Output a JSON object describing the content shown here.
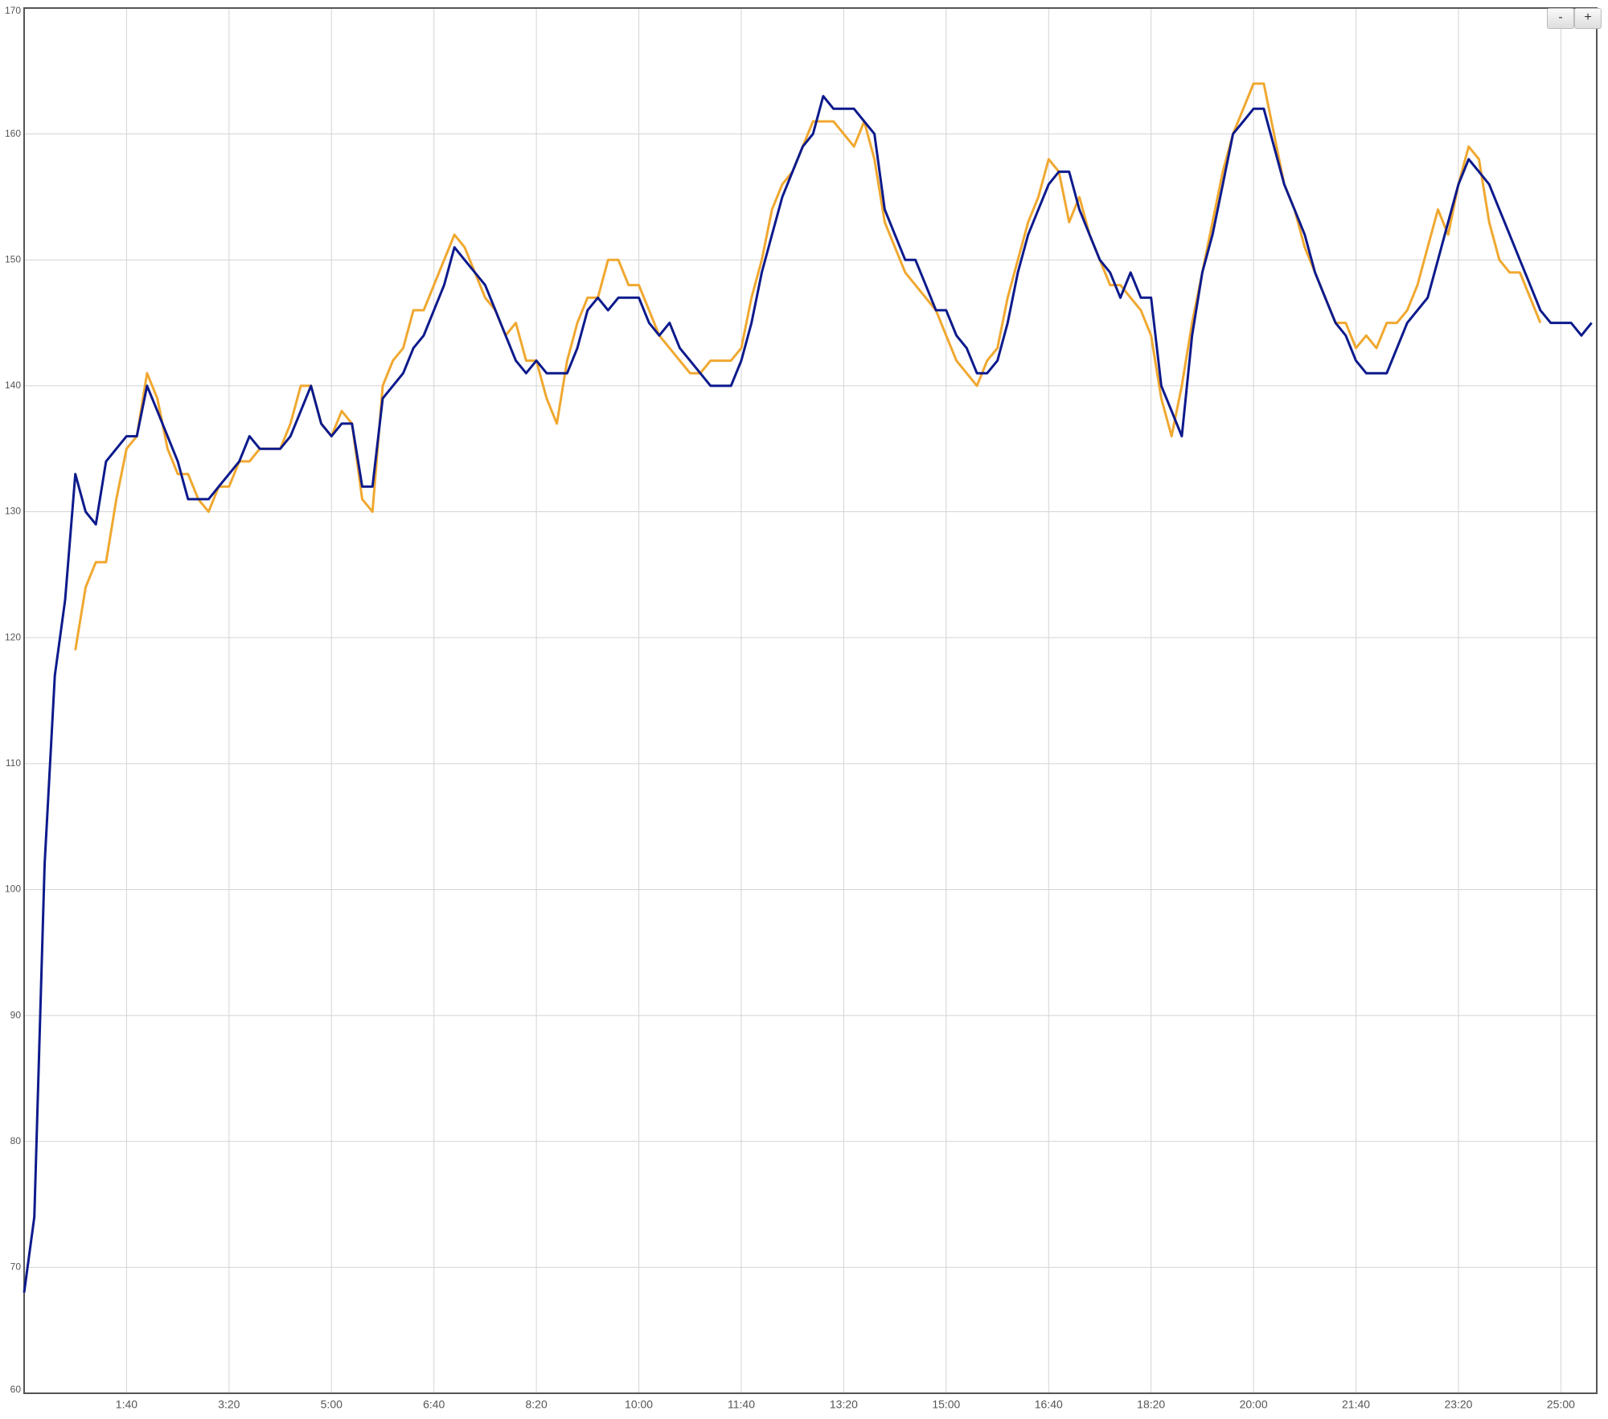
{
  "chart_data": {
    "type": "line",
    "x": [
      0,
      10,
      20,
      30,
      40,
      50,
      60,
      70,
      80,
      90,
      100,
      110,
      120,
      130,
      140,
      150,
      160,
      170,
      180,
      190,
      200,
      210,
      220,
      230,
      240,
      250,
      260,
      270,
      280,
      290,
      300,
      310,
      320,
      330,
      340,
      350,
      360,
      370,
      380,
      390,
      400,
      410,
      420,
      430,
      440,
      450,
      460,
      470,
      480,
      490,
      500,
      510,
      520,
      530,
      540,
      550,
      560,
      570,
      580,
      590,
      600,
      610,
      620,
      630,
      640,
      650,
      660,
      670,
      680,
      690,
      700,
      710,
      720,
      730,
      740,
      750,
      760,
      770,
      780,
      790,
      800,
      810,
      820,
      830,
      840,
      850,
      860,
      870,
      880,
      890,
      900,
      910,
      920,
      930,
      940,
      950,
      960,
      970,
      980,
      990,
      1000,
      1010,
      1020,
      1030,
      1040,
      1050,
      1060,
      1070,
      1080,
      1090,
      1100,
      1110,
      1120,
      1130,
      1140,
      1150,
      1160,
      1170,
      1180,
      1190,
      1200,
      1210,
      1220,
      1230,
      1240,
      1250,
      1260,
      1270,
      1280,
      1290,
      1300,
      1310,
      1320,
      1330,
      1340,
      1350,
      1360,
      1370,
      1380,
      1390,
      1400,
      1410,
      1420,
      1430,
      1440,
      1450,
      1460,
      1470,
      1480,
      1490,
      1500,
      1510,
      1520,
      1530
    ],
    "series": [
      {
        "color": "#f0a830",
        "values": [
          null,
          null,
          null,
          null,
          null,
          119,
          124,
          126,
          126,
          131,
          135,
          136,
          141,
          139,
          135,
          133,
          133,
          131,
          130,
          132,
          132,
          134,
          134,
          135,
          135,
          135,
          137,
          140,
          140,
          137,
          136,
          138,
          137,
          131,
          130,
          140,
          142,
          143,
          146,
          146,
          148,
          150,
          152,
          151,
          149,
          147,
          146,
          144,
          145,
          142,
          142,
          139,
          137,
          142,
          145,
          147,
          147,
          150,
          150,
          148,
          148,
          146,
          144,
          143,
          142,
          141,
          141,
          142,
          142,
          142,
          143,
          147,
          150,
          154,
          156,
          157,
          159,
          161,
          161,
          161,
          160,
          159,
          161,
          158,
          153,
          151,
          149,
          148,
          147,
          146,
          144,
          142,
          141,
          140,
          142,
          143,
          147,
          150,
          153,
          155,
          158,
          157,
          153,
          155,
          152,
          150,
          148,
          148,
          147,
          146,
          144,
          139,
          136,
          140,
          145,
          149,
          153,
          157,
          160,
          162,
          164,
          164,
          160,
          156,
          154,
          151,
          149,
          147,
          145,
          145,
          143,
          144,
          143,
          145,
          145,
          146,
          148,
          151,
          154,
          152,
          156,
          159,
          158,
          153,
          150,
          149,
          149,
          147,
          145,
          null,
          null,
          null,
          null,
          null
        ]
      },
      {
        "color": "#0d1a8c",
        "values": [
          68,
          74,
          102,
          117,
          123,
          133,
          130,
          129,
          134,
          135,
          136,
          136,
          140,
          138,
          136,
          134,
          131,
          131,
          131,
          132,
          133,
          134,
          136,
          135,
          135,
          135,
          136,
          138,
          140,
          137,
          136,
          137,
          137,
          132,
          132,
          139,
          140,
          141,
          143,
          144,
          146,
          148,
          151,
          150,
          149,
          148,
          146,
          144,
          142,
          141,
          142,
          141,
          141,
          141,
          143,
          146,
          147,
          146,
          147,
          147,
          147,
          145,
          144,
          145,
          143,
          142,
          141,
          140,
          140,
          140,
          142,
          145,
          149,
          152,
          155,
          157,
          159,
          160,
          163,
          162,
          162,
          162,
          161,
          160,
          154,
          152,
          150,
          150,
          148,
          146,
          146,
          144,
          143,
          141,
          141,
          142,
          145,
          149,
          152,
          154,
          156,
          157,
          157,
          154,
          152,
          150,
          149,
          147,
          149,
          147,
          147,
          140,
          138,
          136,
          144,
          149,
          152,
          156,
          160,
          161,
          162,
          162,
          159,
          156,
          154,
          152,
          149,
          147,
          145,
          144,
          142,
          141,
          141,
          141,
          143,
          145,
          146,
          147,
          150,
          153,
          156,
          158,
          157,
          156,
          154,
          152,
          150,
          148,
          146,
          145,
          145,
          145,
          144,
          145
        ]
      }
    ],
    "xlim": [
      0,
      1535
    ],
    "xticks": [
      {
        "value": 100,
        "label": "1:40"
      },
      {
        "value": 200,
        "label": "3:20"
      },
      {
        "value": 300,
        "label": "5:00"
      },
      {
        "value": 400,
        "label": "6:40"
      },
      {
        "value": 500,
        "label": "8:20"
      },
      {
        "value": 600,
        "label": "10:00"
      },
      {
        "value": 700,
        "label": "11:40"
      },
      {
        "value": 800,
        "label": "13:20"
      },
      {
        "value": 900,
        "label": "15:00"
      },
      {
        "value": 1000,
        "label": "16:40"
      },
      {
        "value": 1100,
        "label": "18:20"
      },
      {
        "value": 1200,
        "label": "20:00"
      },
      {
        "value": 1300,
        "label": "21:40"
      },
      {
        "value": 1400,
        "label": "23:20"
      },
      {
        "value": 1500,
        "label": "25:00"
      }
    ],
    "ylim": [
      60,
      170
    ],
    "yticks": [
      60,
      70,
      80,
      90,
      100,
      110,
      120,
      130,
      140,
      150,
      160,
      170
    ],
    "grid": true
  },
  "controls": {
    "zoom_out": "-",
    "zoom_in": "+"
  }
}
